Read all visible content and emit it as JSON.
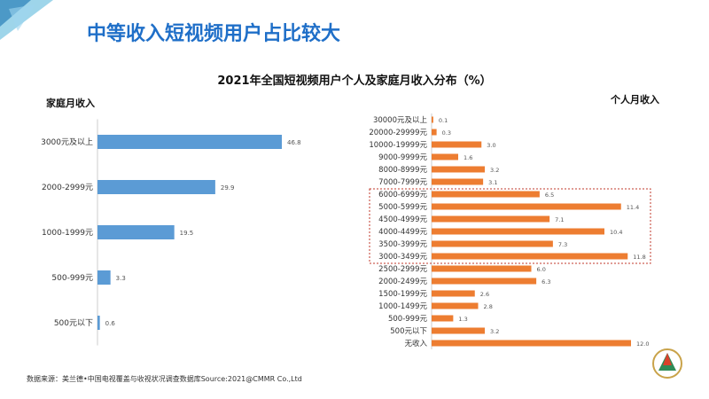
{
  "slide_title": "中等收入短视频用户占比较大",
  "footer": "数据来源：美兰德•中国电视覆盖与收视状况调查数据库Source:2021@CMMR Co.,Ltd",
  "logo_text": "中国传媒大学",
  "colors": {
    "title": "#1f6fc8",
    "left_bars": "#5b9bd5",
    "right_bars": "#ed7d31",
    "highlight_box": "#c0392b"
  },
  "chart_data": [
    {
      "type": "bar",
      "orientation": "horizontal",
      "title": "2021年全国短视频用户个人及家庭月收入分布（%）",
      "ylabel": "家庭月收入",
      "categories": [
        "3000元及以上",
        "2000-2999元",
        "1000-1999元",
        "500-999元",
        "500元以下"
      ],
      "values": [
        46.8,
        29.9,
        19.5,
        3.3,
        0.6
      ],
      "data_labels": [
        "46.8",
        "29.9",
        "19.5",
        "3.3",
        "0.6"
      ]
    },
    {
      "type": "bar",
      "orientation": "horizontal",
      "ylabel": "个人月收入",
      "categories": [
        "30000元及以上",
        "20000-29999元",
        "10000-19999元",
        "9000-9999元",
        "8000-8999元",
        "7000-7999元",
        "6000-6999元",
        "5000-5999元",
        "4500-4999元",
        "4000-4499元",
        "3500-3999元",
        "3000-3499元",
        "2500-2999元",
        "2000-2499元",
        "1500-1999元",
        "1000-1499元",
        "500-999元",
        "500元以下",
        "无收入"
      ],
      "values": [
        0.1,
        0.3,
        3.0,
        1.6,
        3.2,
        3.1,
        6.5,
        11.4,
        7.1,
        10.4,
        7.3,
        11.8,
        6.0,
        6.3,
        2.6,
        2.8,
        1.3,
        3.2,
        12.0
      ],
      "data_labels": [
        "0.1",
        "0.3",
        "3.0",
        "1.6",
        "3.2",
        "3.1",
        "6.5",
        "11.4",
        "7.1",
        "10.4",
        "7.3",
        "11.8",
        "6.0",
        "6.3",
        "2.6",
        "2.8",
        "1.3",
        "3.2",
        "12.0"
      ],
      "highlighted_range": [
        "6000-6999元",
        "3000-3499元"
      ]
    }
  ]
}
